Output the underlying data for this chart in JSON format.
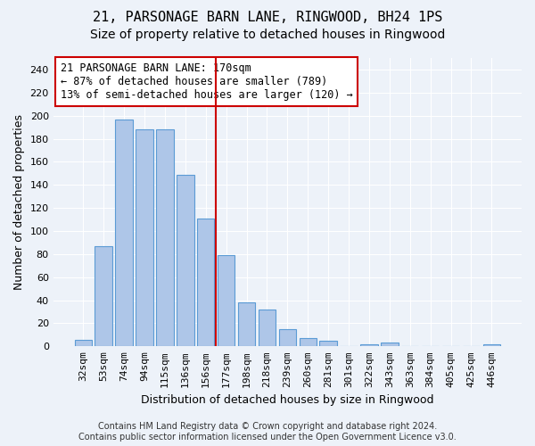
{
  "title": "21, PARSONAGE BARN LANE, RINGWOOD, BH24 1PS",
  "subtitle": "Size of property relative to detached houses in Ringwood",
  "xlabel": "Distribution of detached houses by size in Ringwood",
  "ylabel": "Number of detached properties",
  "categories": [
    "32sqm",
    "53sqm",
    "74sqm",
    "94sqm",
    "115sqm",
    "136sqm",
    "156sqm",
    "177sqm",
    "198sqm",
    "218sqm",
    "239sqm",
    "260sqm",
    "281sqm",
    "301sqm",
    "322sqm",
    "343sqm",
    "363sqm",
    "384sqm",
    "405sqm",
    "425sqm",
    "446sqm"
  ],
  "values": [
    6,
    87,
    197,
    188,
    188,
    149,
    111,
    79,
    38,
    32,
    15,
    7,
    5,
    0,
    2,
    3,
    0,
    0,
    0,
    0,
    2
  ],
  "bar_color": "#aec6e8",
  "bar_edge_color": "#5b9bd5",
  "vline_color": "#cc0000",
  "vline_index": 7,
  "annotation_line1": "21 PARSONAGE BARN LANE: 170sqm",
  "annotation_line2": "← 87% of detached houses are smaller (789)",
  "annotation_line3": "13% of semi-detached houses are larger (120) →",
  "annotation_box_color": "#ffffff",
  "annotation_box_edge": "#cc0000",
  "ylim": [
    0,
    250
  ],
  "yticks": [
    0,
    20,
    40,
    60,
    80,
    100,
    120,
    140,
    160,
    180,
    200,
    220,
    240
  ],
  "footer1": "Contains HM Land Registry data © Crown copyright and database right 2024.",
  "footer2": "Contains public sector information licensed under the Open Government Licence v3.0.",
  "bg_color": "#edf2f9",
  "grid_color": "#ffffff",
  "title_fontsize": 11,
  "subtitle_fontsize": 10,
  "axis_label_fontsize": 9,
  "tick_fontsize": 8,
  "annotation_fontsize": 8.5,
  "footer_fontsize": 7
}
